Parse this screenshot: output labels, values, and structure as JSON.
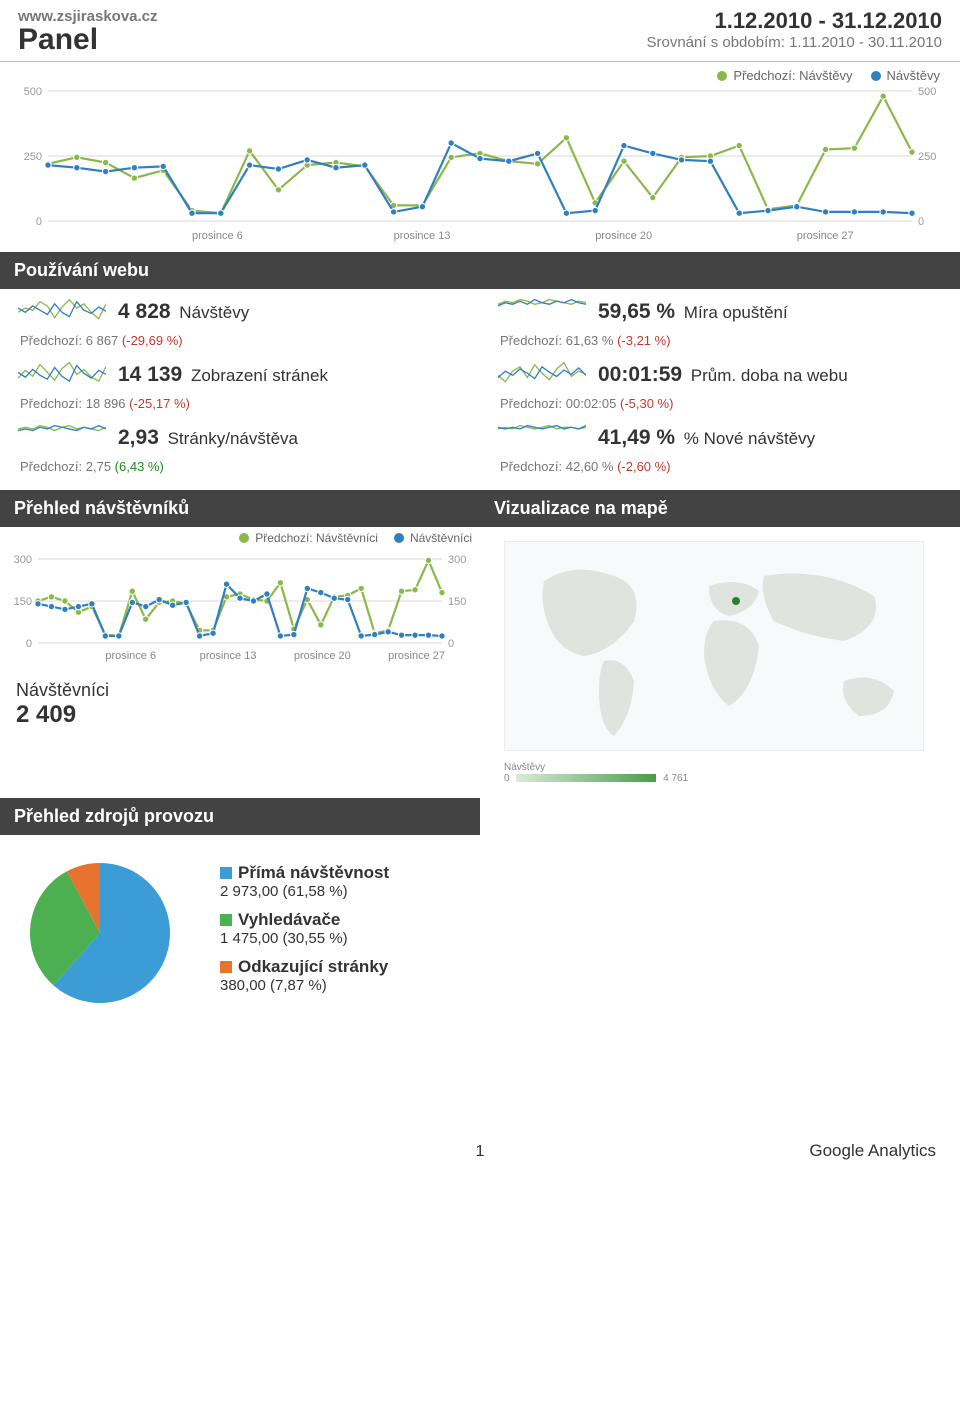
{
  "header": {
    "site": "www.zsjiraskova.cz",
    "title": "Panel",
    "date_range": "1.12.2010 - 31.12.2010",
    "compare_label": "Srovnání s obdobím: 1.11.2010 - 30.11.2010"
  },
  "colors": {
    "current": "#2f7fc1",
    "previous": "#8bb84a",
    "grid": "#d8d8d8",
    "text_muted": "#777",
    "section_bg": "#434343",
    "pos": "#1a8c1a",
    "neg": "#c0392b"
  },
  "main_chart": {
    "legend_prev": "Předchozí: Návštěvy",
    "legend_cur": "Návštěvy",
    "ymax": 500,
    "yticks": [
      500,
      250,
      0
    ],
    "xticks": [
      "prosince 6",
      "prosince 13",
      "prosince 20",
      "prosince 27"
    ],
    "current": [
      215,
      205,
      190,
      205,
      210,
      30,
      30,
      215,
      200,
      235,
      205,
      215,
      35,
      55,
      300,
      240,
      230,
      260,
      30,
      40,
      290,
      260,
      235,
      230,
      30,
      40,
      55,
      35,
      35,
      35,
      30
    ],
    "previous": [
      220,
      245,
      225,
      165,
      195,
      40,
      30,
      270,
      120,
      215,
      225,
      210,
      60,
      60,
      245,
      260,
      230,
      220,
      320,
      70,
      230,
      90,
      245,
      250,
      290,
      45,
      60,
      275,
      280,
      480,
      265
    ]
  },
  "sections": {
    "usage": "Používání webu",
    "visitors": "Přehled návštěvníků",
    "map": "Vizualizace na mapě",
    "traffic": "Přehled zdrojů provozu"
  },
  "metrics": [
    {
      "value": "4 828",
      "label": "Návštěvy",
      "prev_label": "Předchozí: 6 867 ",
      "pct": "(-29,69 %)",
      "dir": "neg",
      "spark_a": [
        10,
        14,
        12,
        20,
        16,
        5,
        15,
        22,
        14,
        18,
        10,
        4,
        18
      ],
      "spark_b": [
        14,
        10,
        16,
        12,
        8,
        18,
        10,
        6,
        20,
        12,
        9,
        15,
        11
      ]
    },
    {
      "value": "59,65 %",
      "label": "Míra opuštění",
      "prev_label": "Předchozí: 61,63 % ",
      "pct": "(-3,21 %)",
      "dir": "neg",
      "spark_a": [
        12,
        14,
        13,
        15,
        14,
        12,
        13,
        15,
        14,
        13,
        12,
        14,
        13
      ],
      "spark_b": [
        11,
        13,
        12,
        14,
        12,
        15,
        13,
        12,
        14,
        13,
        15,
        13,
        12
      ]
    },
    {
      "value": "14 139",
      "label": "Zobrazení stránek",
      "prev_label": "Předchozí: 18 896 ",
      "pct": "(-25,17 %)",
      "dir": "neg",
      "spark_a": [
        8,
        16,
        10,
        22,
        14,
        6,
        18,
        24,
        12,
        17,
        9,
        5,
        20
      ],
      "spark_b": [
        14,
        9,
        17,
        11,
        7,
        19,
        10,
        5,
        21,
        13,
        8,
        16,
        12
      ]
    },
    {
      "value": "00:01:59",
      "label": "Prům. doba na webu",
      "prev_label": "Předchozí: 00:02:05 ",
      "pct": "(-5,30 %)",
      "dir": "neg",
      "spark_a": [
        10,
        4,
        14,
        18,
        8,
        20,
        12,
        6,
        16,
        22,
        9,
        14,
        11
      ],
      "spark_b": [
        8,
        14,
        10,
        16,
        12,
        7,
        18,
        13,
        9,
        15,
        11,
        17,
        10
      ]
    },
    {
      "value": "2,93",
      "label": "Stránky/návštěva",
      "prev_label": "Předchozí: 2,75 ",
      "pct": "(6,43 %)",
      "dir": "pos",
      "spark_a": [
        12,
        13,
        12,
        14,
        13,
        11,
        13,
        14,
        12,
        13,
        12,
        11,
        13
      ],
      "spark_b": [
        11,
        12,
        11,
        13,
        12,
        14,
        13,
        12,
        11,
        13,
        12,
        14,
        12
      ]
    },
    {
      "value": "41,49 %",
      "label": "% Nové návštěvy",
      "prev_label": "Předchozí: 42,60 % ",
      "pct": "(-2,60 %)",
      "dir": "neg",
      "spark_a": [
        12,
        13,
        12,
        14,
        13,
        12,
        13,
        14,
        12,
        13,
        13,
        12,
        13
      ],
      "spark_b": [
        13,
        12,
        13,
        12,
        14,
        13,
        12,
        13,
        14,
        12,
        13,
        12,
        14
      ]
    }
  ],
  "mini_chart": {
    "legend_prev": "Předchozí: Návštěvníci",
    "legend_cur": "Návštěvníci",
    "ymax": 300,
    "yticks": [
      300,
      150,
      0
    ],
    "xticks": [
      "prosince 6",
      "prosince 13",
      "prosince 20",
      "prosince 27"
    ],
    "current": [
      140,
      130,
      120,
      130,
      140,
      25,
      25,
      145,
      130,
      155,
      135,
      145,
      25,
      35,
      210,
      160,
      150,
      175,
      25,
      30,
      195,
      180,
      160,
      155,
      25,
      30,
      40,
      28,
      28,
      28,
      25
    ],
    "previous": [
      150,
      165,
      150,
      110,
      130,
      30,
      25,
      185,
      85,
      145,
      150,
      140,
      45,
      45,
      165,
      175,
      155,
      150,
      215,
      50,
      155,
      65,
      165,
      170,
      195,
      35,
      45,
      185,
      190,
      295,
      180
    ],
    "visitors_label": "Návštěvníci",
    "visitors_total": "2 409"
  },
  "map": {
    "legend_label": "Návštěvy",
    "legend_min": "0",
    "legend_max": "4 761"
  },
  "traffic": {
    "items": [
      {
        "name": "Přímá návštěvnost",
        "value": "2 973,00 (61,58 %)",
        "pct": 61.58,
        "color": "#3b9cd6"
      },
      {
        "name": "Vyhledávače",
        "value": "1 475,00 (30,55 %)",
        "pct": 30.55,
        "color": "#4caf50"
      },
      {
        "name": "Odkazující stránky",
        "value": "380,00 (7,87 %)",
        "pct": 7.87,
        "color": "#e8732e"
      }
    ]
  },
  "footer": {
    "page": "1",
    "brand": "Google Analytics"
  }
}
